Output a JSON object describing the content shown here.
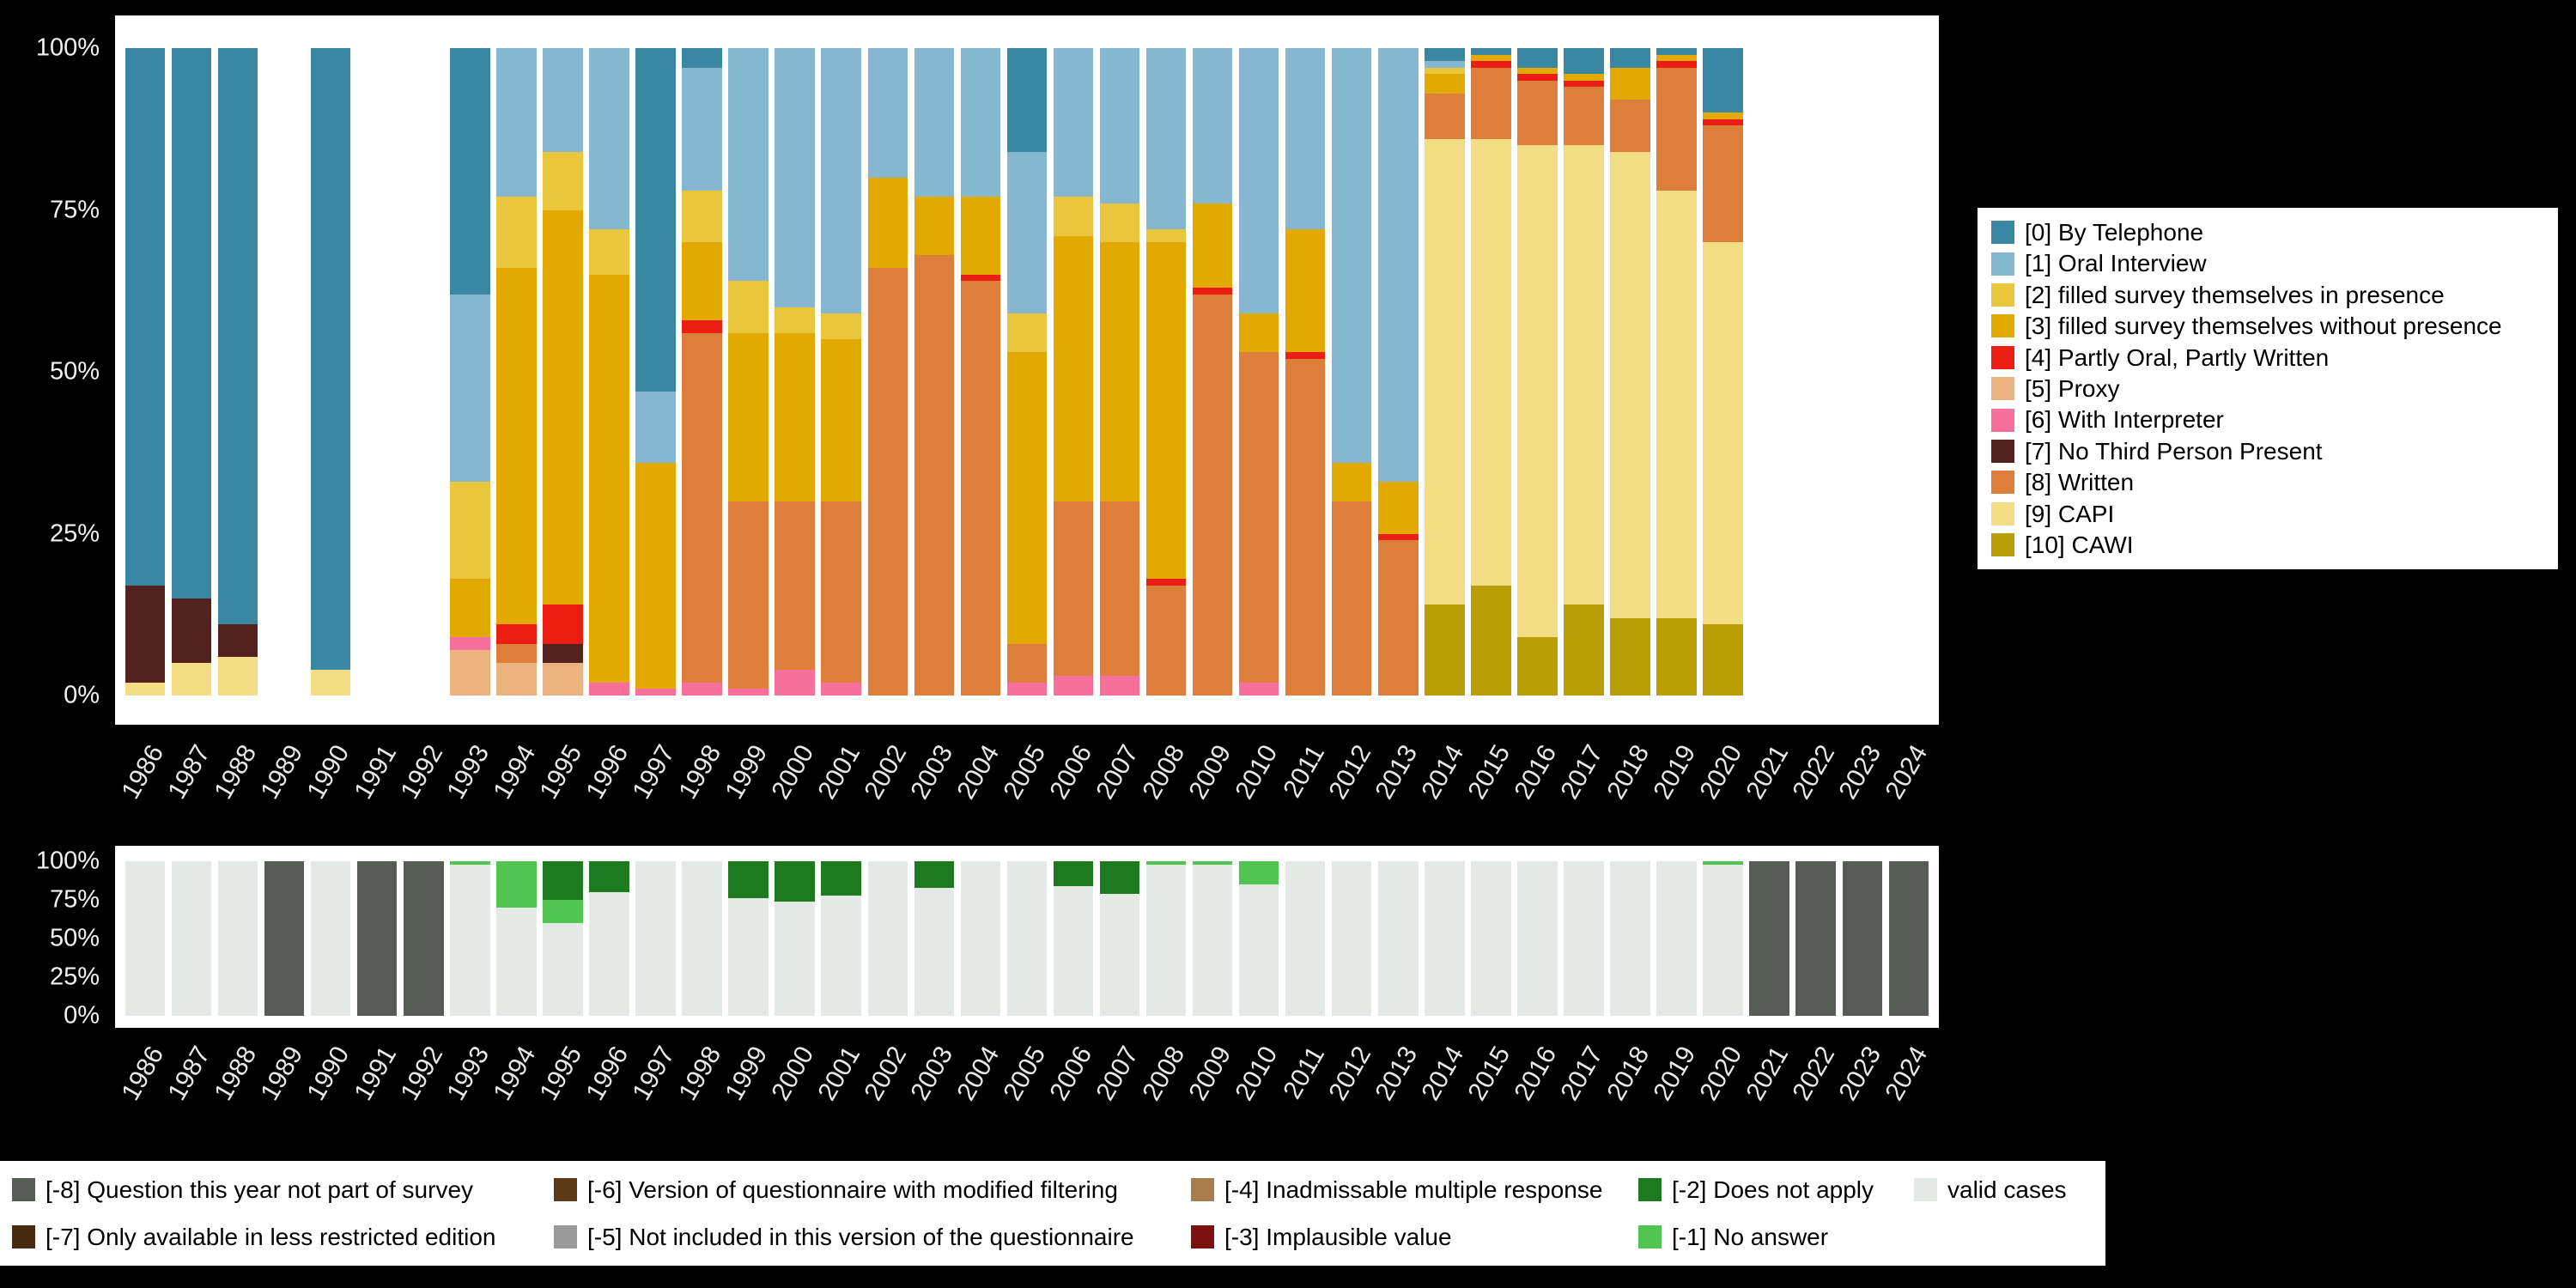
{
  "figure": {
    "background": "#000000",
    "panel_background": "#ffffff"
  },
  "chart_data": [
    {
      "id": "survey-mode-by-year",
      "type": "bar",
      "stacked": true,
      "unit": "percent",
      "ylim": [
        0,
        100
      ],
      "yticks": [
        "100%",
        "75%",
        "50%",
        "25%",
        "0%"
      ],
      "legend_position": "right",
      "x": [
        "1986",
        "1987",
        "1988",
        "1989",
        "1990",
        "1991",
        "1992",
        "1993",
        "1994",
        "1995",
        "1996",
        "1997",
        "1998",
        "1999",
        "2000",
        "2001",
        "2002",
        "2003",
        "2004",
        "2005",
        "2006",
        "2007",
        "2008",
        "2009",
        "2010",
        "2011",
        "2012",
        "2013",
        "2014",
        "2015",
        "2016",
        "2017",
        "2018",
        "2019",
        "2020",
        "2021",
        "2022",
        "2023",
        "2024"
      ],
      "stack_order_bottom_to_top": [
        "5",
        "6",
        "10",
        "9",
        "8",
        "7",
        "4",
        "3",
        "2",
        "1",
        "0"
      ],
      "series": [
        {
          "key": "0",
          "label": "[0] By Telephone",
          "color": "#3a87a4",
          "values": [
            83,
            85,
            89,
            0,
            96,
            0,
            0,
            38,
            0,
            0,
            0,
            53,
            3,
            0,
            0,
            0,
            0,
            0,
            0,
            16,
            0,
            0,
            0,
            0,
            0,
            0,
            0,
            0,
            2,
            1,
            3,
            4,
            3,
            1,
            10,
            0,
            0,
            0,
            0
          ]
        },
        {
          "key": "1",
          "label": "[1] Oral Interview",
          "color": "#85b7d1",
          "values": [
            0,
            0,
            0,
            0,
            0,
            0,
            0,
            29,
            23,
            16,
            28,
            11,
            19,
            36,
            40,
            41,
            20,
            23,
            23,
            25,
            23,
            24,
            28,
            24,
            41,
            28,
            64,
            67,
            1,
            0,
            0,
            0,
            0,
            0,
            0,
            0,
            0,
            0,
            0
          ]
        },
        {
          "key": "2",
          "label": "[2] filled survey themselves in presence",
          "color": "#e9c63b",
          "values": [
            0,
            0,
            0,
            0,
            0,
            0,
            0,
            15,
            11,
            9,
            7,
            0,
            8,
            8,
            4,
            4,
            0,
            0,
            0,
            6,
            6,
            6,
            2,
            0,
            0,
            0,
            0,
            0,
            1,
            0,
            0,
            0,
            0,
            0,
            0,
            0,
            0,
            0,
            0
          ]
        },
        {
          "key": "3",
          "label": "[3] filled survey themselves without presence",
          "color": "#e2a900",
          "values": [
            0,
            0,
            0,
            0,
            0,
            0,
            0,
            9,
            55,
            61,
            63,
            35,
            12,
            26,
            26,
            25,
            14,
            9,
            12,
            45,
            41,
            40,
            52,
            13,
            6,
            19,
            6,
            8,
            3,
            1,
            1,
            1,
            5,
            1,
            1,
            0,
            0,
            0,
            0
          ]
        },
        {
          "key": "4",
          "label": "[4] Partly Oral, Partly Written",
          "color": "#ec1d12",
          "values": [
            0,
            0,
            0,
            0,
            0,
            0,
            0,
            0,
            3,
            6,
            0,
            0,
            2,
            0,
            0,
            0,
            0,
            0,
            1,
            0,
            0,
            0,
            1,
            1,
            0,
            1,
            0,
            1,
            0,
            1,
            1,
            1,
            0,
            1,
            1,
            0,
            0,
            0,
            0
          ]
        },
        {
          "key": "5",
          "label": "[5] Proxy",
          "color": "#eab380",
          "values": [
            0,
            0,
            0,
            0,
            0,
            0,
            0,
            7,
            5,
            5,
            0,
            0,
            0,
            0,
            0,
            0,
            0,
            0,
            0,
            0,
            0,
            0,
            0,
            0,
            0,
            0,
            0,
            0,
            0,
            0,
            0,
            0,
            0,
            0,
            0,
            0,
            0,
            0,
            0
          ]
        },
        {
          "key": "6",
          "label": "[6] With Interpreter",
          "color": "#f76f9b",
          "values": [
            0,
            0,
            0,
            0,
            0,
            0,
            0,
            2,
            0,
            0,
            2,
            1,
            2,
            1,
            4,
            2,
            0,
            0,
            0,
            2,
            3,
            3,
            0,
            0,
            2,
            0,
            0,
            0,
            0,
            0,
            0,
            0,
            0,
            0,
            0,
            0,
            0,
            0,
            0
          ]
        },
        {
          "key": "7",
          "label": "[7] No Third Person Present",
          "color": "#54221e",
          "values": [
            15,
            10,
            5,
            0,
            0,
            0,
            0,
            0,
            0,
            3,
            0,
            0,
            0,
            0,
            0,
            0,
            0,
            0,
            0,
            0,
            0,
            0,
            0,
            0,
            0,
            0,
            0,
            0,
            0,
            0,
            0,
            0,
            0,
            0,
            0,
            0,
            0,
            0,
            0
          ]
        },
        {
          "key": "8",
          "label": "[8] Written",
          "color": "#dd7e3b",
          "values": [
            0,
            0,
            0,
            0,
            0,
            0,
            0,
            0,
            3,
            0,
            0,
            0,
            54,
            29,
            26,
            28,
            66,
            68,
            64,
            6,
            27,
            27,
            17,
            62,
            51,
            52,
            30,
            24,
            7,
            11,
            10,
            9,
            8,
            19,
            18,
            0,
            0,
            0,
            0
          ]
        },
        {
          "key": "9",
          "label": "[9] CAPI",
          "color": "#f3dd85",
          "values": [
            2,
            5,
            6,
            0,
            4,
            0,
            0,
            0,
            0,
            0,
            0,
            0,
            0,
            0,
            0,
            0,
            0,
            0,
            0,
            0,
            0,
            0,
            0,
            0,
            0,
            0,
            0,
            0,
            72,
            69,
            76,
            71,
            72,
            66,
            59,
            0,
            0,
            0,
            0
          ]
        },
        {
          "key": "10",
          "label": "[10] CAWI",
          "color": "#b99e06",
          "values": [
            0,
            0,
            0,
            0,
            0,
            0,
            0,
            0,
            0,
            0,
            0,
            0,
            0,
            0,
            0,
            0,
            0,
            0,
            0,
            0,
            0,
            0,
            0,
            0,
            0,
            0,
            0,
            0,
            14,
            17,
            9,
            14,
            12,
            12,
            11,
            0,
            0,
            0,
            0
          ]
        }
      ]
    },
    {
      "id": "missing-values-by-year",
      "type": "bar",
      "stacked": true,
      "unit": "percent",
      "ylim": [
        0,
        100
      ],
      "yticks": [
        "100%",
        "75%",
        "50%",
        "25%",
        "0%"
      ],
      "legend_position": "bottom",
      "x": [
        "1986",
        "1987",
        "1988",
        "1989",
        "1990",
        "1991",
        "1992",
        "1993",
        "1994",
        "1995",
        "1996",
        "1997",
        "1998",
        "1999",
        "2000",
        "2001",
        "2002",
        "2003",
        "2004",
        "2005",
        "2006",
        "2007",
        "2008",
        "2009",
        "2010",
        "2011",
        "2012",
        "2013",
        "2014",
        "2015",
        "2016",
        "2017",
        "2018",
        "2019",
        "2020",
        "2021",
        "2022",
        "2023",
        "2024"
      ],
      "stack_order_bottom_to_top": [
        "valid",
        "-1",
        "-2",
        "-3",
        "-4",
        "-5",
        "-6",
        "-7",
        "-8"
      ],
      "series": [
        {
          "key": "valid",
          "label": "valid cases",
          "color": "#e5e9e5",
          "values": [
            100,
            100,
            100,
            0,
            100,
            0,
            0,
            98,
            70,
            60,
            80,
            100,
            100,
            76,
            74,
            78,
            100,
            83,
            100,
            100,
            84,
            79,
            98,
            98,
            85,
            100,
            100,
            100,
            100,
            100,
            100,
            100,
            100,
            100,
            98,
            0,
            0,
            0,
            0
          ]
        },
        {
          "key": "-1",
          "label": "[-1] No answer",
          "color": "#52c452",
          "values": [
            0,
            0,
            0,
            0,
            0,
            0,
            0,
            2,
            30,
            15,
            0,
            0,
            0,
            0,
            0,
            0,
            0,
            0,
            0,
            0,
            0,
            0,
            2,
            2,
            15,
            0,
            0,
            0,
            0,
            0,
            0,
            0,
            0,
            0,
            2,
            0,
            0,
            0,
            0
          ]
        },
        {
          "key": "-2",
          "label": "[-2] Does not apply",
          "color": "#1e7a1e",
          "values": [
            0,
            0,
            0,
            0,
            0,
            0,
            0,
            0,
            0,
            25,
            20,
            0,
            0,
            24,
            26,
            22,
            0,
            17,
            0,
            0,
            16,
            21,
            0,
            0,
            0,
            0,
            0,
            0,
            0,
            0,
            0,
            0,
            0,
            0,
            0,
            0,
            0,
            0,
            0
          ]
        },
        {
          "key": "-3",
          "label": "[-3] Implausible value",
          "color": "#7d1111",
          "values": [
            0,
            0,
            0,
            0,
            0,
            0,
            0,
            0,
            0,
            0,
            0,
            0,
            0,
            0,
            0,
            0,
            0,
            0,
            0,
            0,
            0,
            0,
            0,
            0,
            0,
            0,
            0,
            0,
            0,
            0,
            0,
            0,
            0,
            0,
            0,
            0,
            0,
            0,
            0
          ]
        },
        {
          "key": "-4",
          "label": "[-4] Inadmissable multiple response",
          "color": "#a97c4c",
          "values": [
            0,
            0,
            0,
            0,
            0,
            0,
            0,
            0,
            0,
            0,
            0,
            0,
            0,
            0,
            0,
            0,
            0,
            0,
            0,
            0,
            0,
            0,
            0,
            0,
            0,
            0,
            0,
            0,
            0,
            0,
            0,
            0,
            0,
            0,
            0,
            0,
            0,
            0,
            0
          ]
        },
        {
          "key": "-5",
          "label": "[-5] Not included in this version of the questionnaire",
          "color": "#9a9a9a",
          "values": [
            0,
            0,
            0,
            0,
            0,
            0,
            0,
            0,
            0,
            0,
            0,
            0,
            0,
            0,
            0,
            0,
            0,
            0,
            0,
            0,
            0,
            0,
            0,
            0,
            0,
            0,
            0,
            0,
            0,
            0,
            0,
            0,
            0,
            0,
            0,
            0,
            0,
            0,
            0
          ]
        },
        {
          "key": "-6",
          "label": "[-6] Version of questionnaire with modified filtering",
          "color": "#5e3a17",
          "values": [
            0,
            0,
            0,
            0,
            0,
            0,
            0,
            0,
            0,
            0,
            0,
            0,
            0,
            0,
            0,
            0,
            0,
            0,
            0,
            0,
            0,
            0,
            0,
            0,
            0,
            0,
            0,
            0,
            0,
            0,
            0,
            0,
            0,
            0,
            0,
            0,
            0,
            0,
            0
          ]
        },
        {
          "key": "-7",
          "label": "[-7] Only available in less restricted edition",
          "color": "#47290f",
          "values": [
            0,
            0,
            0,
            0,
            0,
            0,
            0,
            0,
            0,
            0,
            0,
            0,
            0,
            0,
            0,
            0,
            0,
            0,
            0,
            0,
            0,
            0,
            0,
            0,
            0,
            0,
            0,
            0,
            0,
            0,
            0,
            0,
            0,
            0,
            0,
            0,
            0,
            0,
            0
          ]
        },
        {
          "key": "-8",
          "label": "[-8] Question this year not part of survey",
          "color": "#575c57",
          "values": [
            0,
            0,
            0,
            100,
            0,
            100,
            100,
            0,
            0,
            0,
            0,
            0,
            0,
            0,
            0,
            0,
            0,
            0,
            0,
            0,
            0,
            0,
            0,
            0,
            0,
            0,
            0,
            0,
            0,
            0,
            0,
            0,
            0,
            0,
            0,
            100,
            100,
            100,
            100
          ]
        }
      ]
    }
  ],
  "bottom_legend": {
    "rows": [
      [
        "-8",
        "-6",
        "-4",
        "-2",
        "valid"
      ],
      [
        "-7",
        "-5",
        "-3",
        "-1"
      ]
    ]
  }
}
